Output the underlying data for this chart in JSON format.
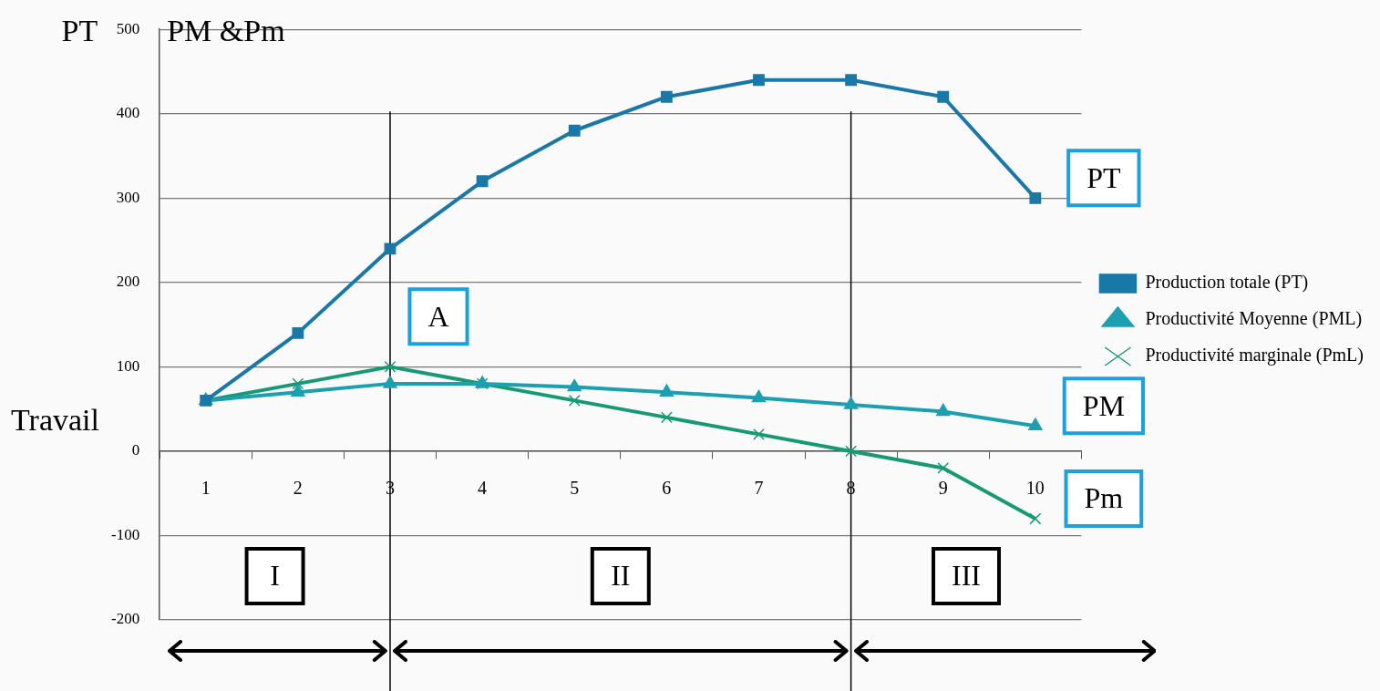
{
  "chart_data": {
    "type": "line",
    "ylabel": "PT",
    "xlabel": "Travail",
    "categories": [
      "1",
      "2",
      "3",
      "4",
      "5",
      "6",
      "7",
      "8",
      "9",
      "10"
    ],
    "series": [
      {
        "name": "Production totale (PT)",
        "color": "#1a78a8",
        "marker": "square",
        "values": [
          60,
          140,
          240,
          320,
          380,
          420,
          440,
          440,
          420,
          300
        ]
      },
      {
        "name": "Productivité Moyenne (PML)",
        "color": "#1c9fb0",
        "marker": "triangle",
        "values": [
          60,
          70,
          80,
          80,
          76,
          70,
          63,
          55,
          47,
          30
        ]
      },
      {
        "name": "Productivité marginale (PmL)",
        "color": "#169a73",
        "marker": "cross",
        "values": [
          60,
          80,
          100,
          80,
          60,
          40,
          20,
          0,
          -20,
          -80
        ]
      }
    ],
    "ylim": [
      -200,
      500
    ],
    "yticks": [
      -200,
      -100,
      0,
      100,
      200,
      300,
      400,
      500
    ],
    "grid": "y",
    "legend": "right",
    "line_style": "solid",
    "ref_lines": [
      {
        "axis": "x",
        "value": "3",
        "color": "#000000"
      },
      {
        "axis": "x",
        "value": "8",
        "color": "#000000"
      }
    ],
    "annotations": [
      "PM &Pm",
      {
        "text": "A",
        "x": "3",
        "y": 100
      },
      {
        "text": "PT",
        "x": "10",
        "y": 300
      },
      {
        "text": "PM",
        "x": "10",
        "y": 30
      },
      {
        "text": "Pm",
        "x": "10",
        "y": -80
      },
      "I",
      "II",
      "III"
    ]
  }
}
